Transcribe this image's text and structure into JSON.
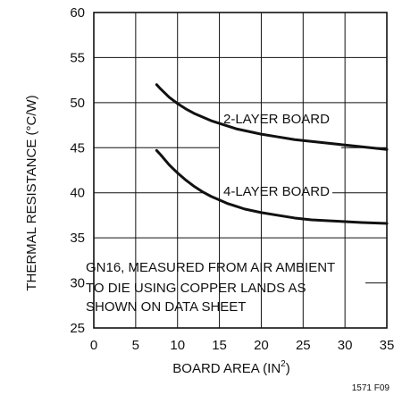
{
  "chart_data": {
    "type": "line",
    "title": "",
    "xlabel": "BOARD AREA (IN",
    "xlabel_sup": "2",
    "xlabel_suffix": ")",
    "ylabel": "THERMAL RESISTANCE (°C/W)",
    "xlim": [
      0,
      35
    ],
    "ylim": [
      25,
      60
    ],
    "x_ticks": [
      0,
      5,
      10,
      15,
      20,
      25,
      30,
      35
    ],
    "y_ticks": [
      25,
      30,
      35,
      40,
      45,
      50,
      55,
      60
    ],
    "grid": true,
    "series": [
      {
        "name": "2-LAYER BOARD",
        "x": [
          7.5,
          8,
          9,
          10,
          11,
          12,
          13,
          14,
          15,
          16,
          17,
          18,
          19,
          20,
          22,
          24,
          26,
          28,
          30,
          32,
          35
        ],
        "y": [
          52.0,
          51.5,
          50.6,
          49.9,
          49.3,
          48.8,
          48.4,
          48.0,
          47.7,
          47.4,
          47.1,
          46.9,
          46.7,
          46.5,
          46.2,
          45.9,
          45.7,
          45.5,
          45.3,
          45.1,
          44.8
        ]
      },
      {
        "name": "4-LAYER BOARD",
        "x": [
          7.5,
          8,
          9,
          10,
          11,
          12,
          13,
          14,
          15,
          16,
          17,
          18,
          19,
          20,
          22,
          24,
          26,
          28,
          30,
          32,
          35
        ],
        "y": [
          44.7,
          44.2,
          43.1,
          42.2,
          41.4,
          40.7,
          40.1,
          39.6,
          39.2,
          38.8,
          38.5,
          38.2,
          38.0,
          37.8,
          37.5,
          37.2,
          37.0,
          36.9,
          36.8,
          36.7,
          36.6
        ]
      }
    ],
    "annotations": [
      "GN16, MEASURED FROM AIR AMBIENT",
      "TO DIE USING COPPER LANDS AS",
      "SHOWN ON DATA SHEET"
    ],
    "figure_id": "1571 F09"
  }
}
